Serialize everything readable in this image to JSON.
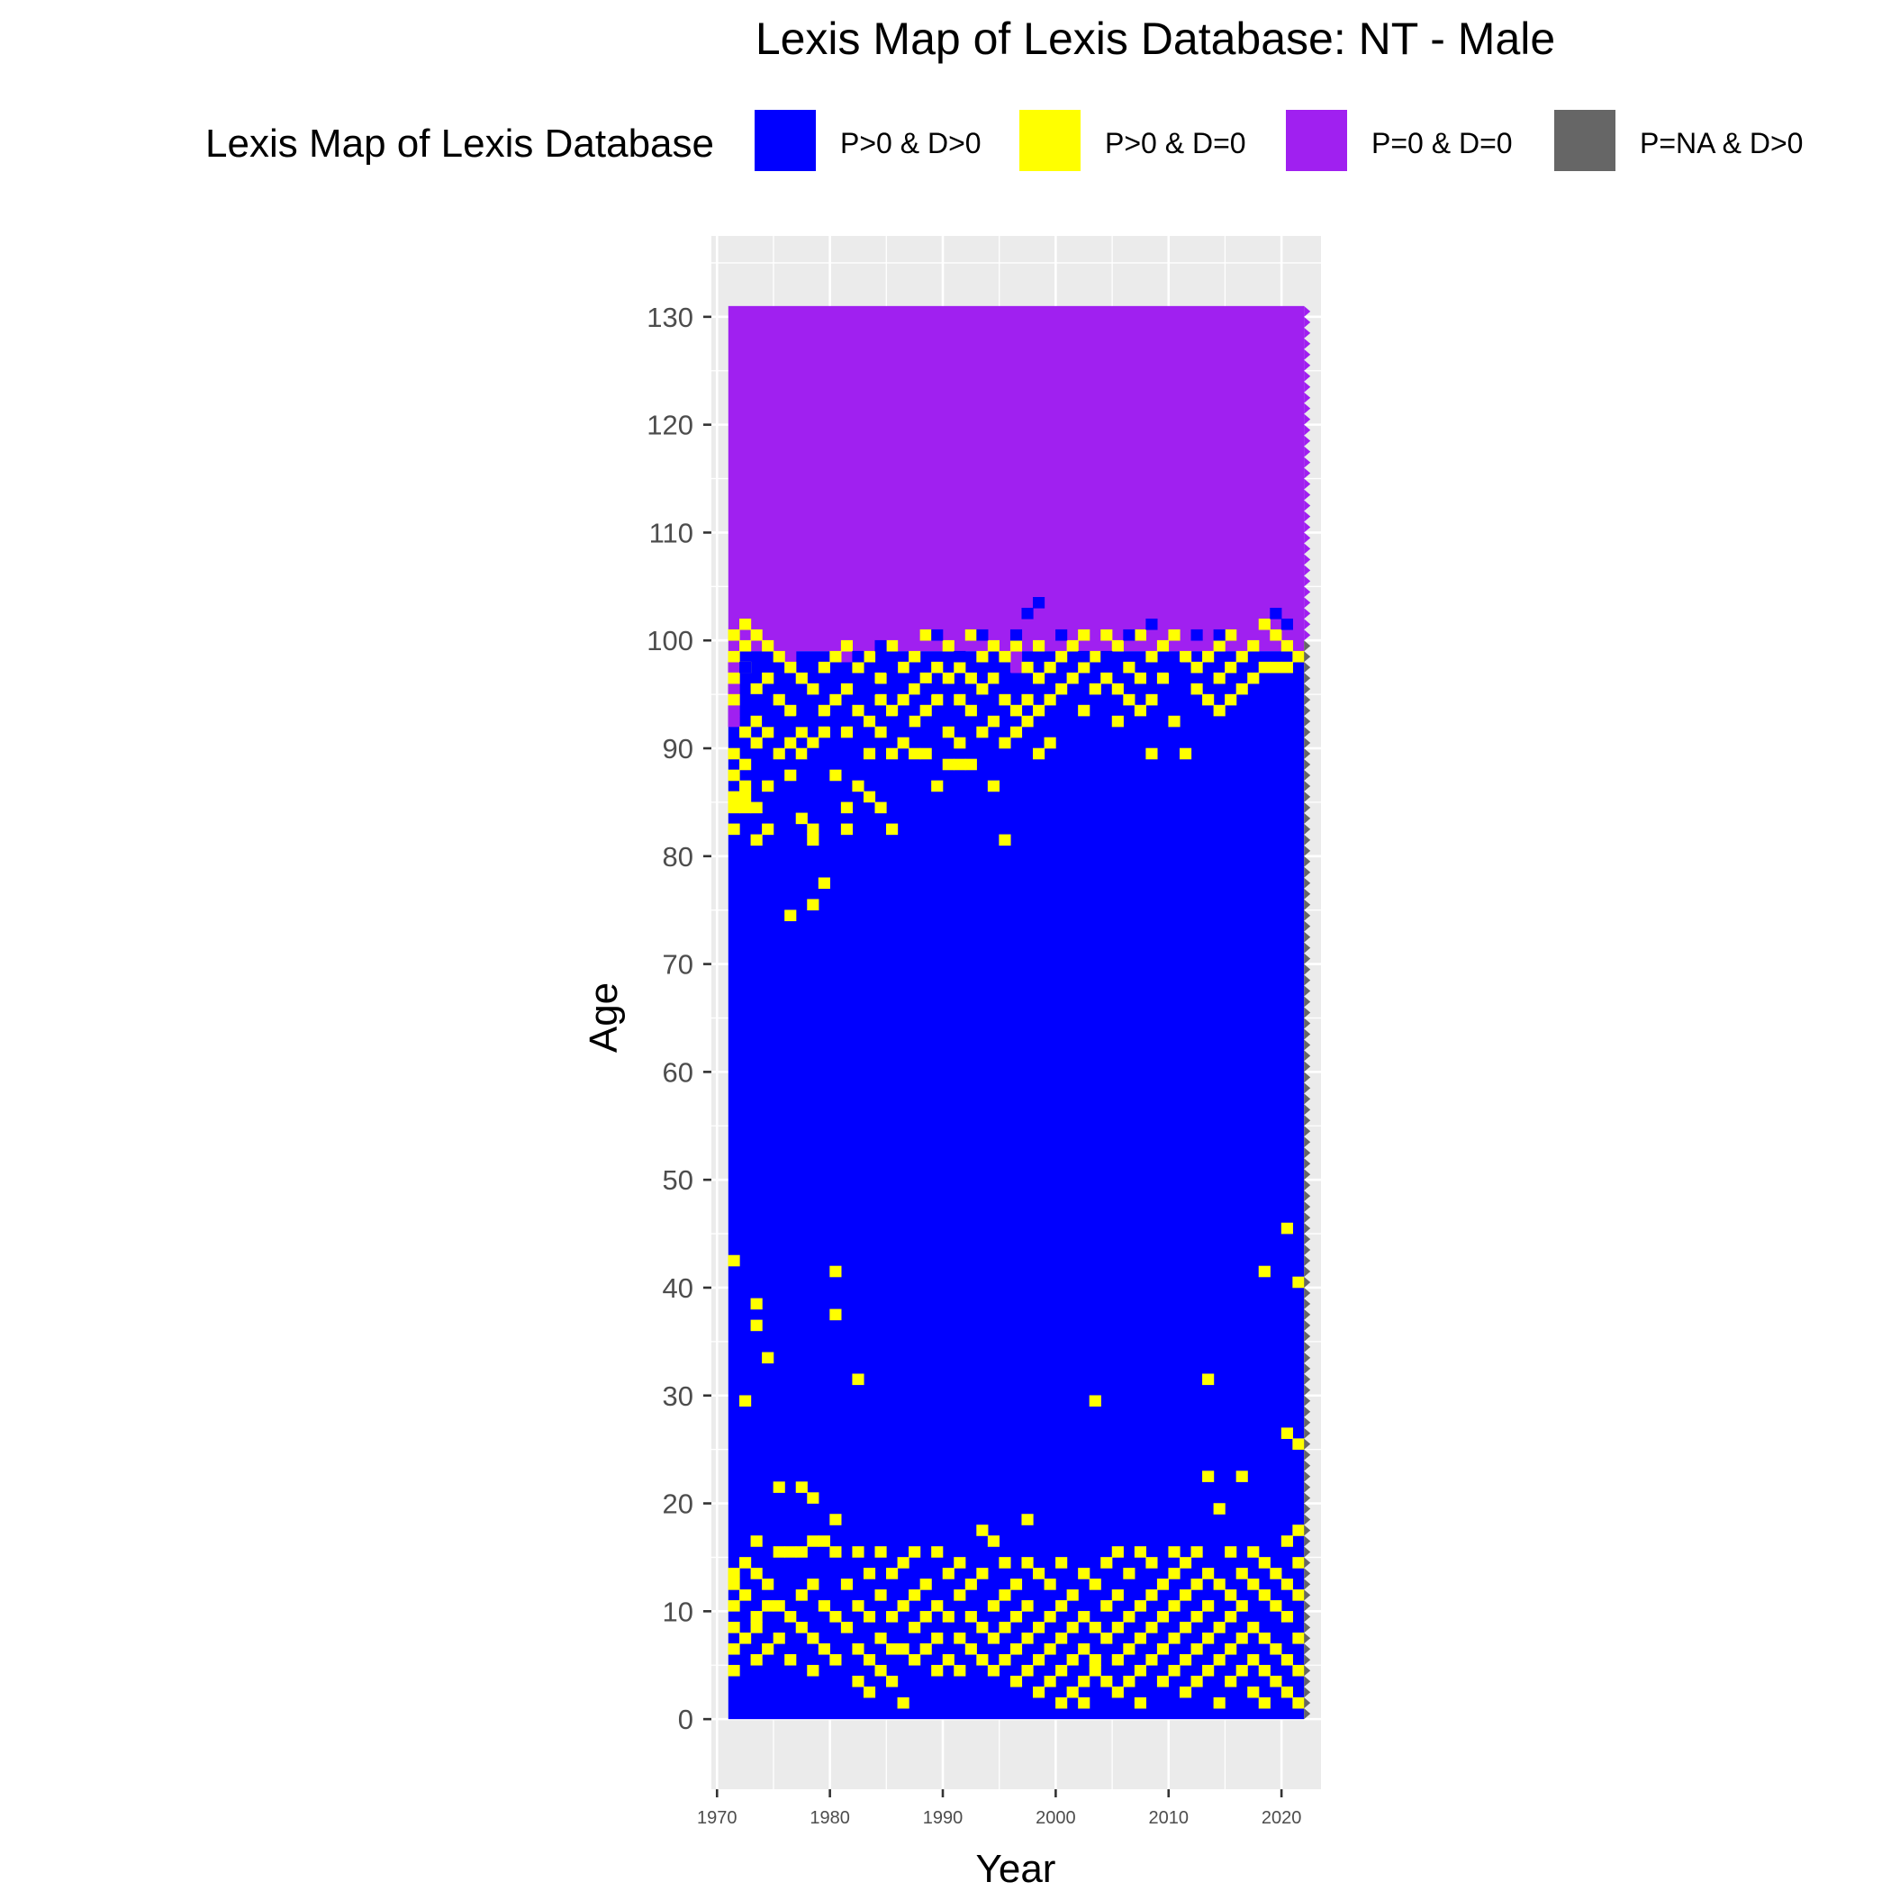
{
  "chart_data": {
    "type": "heatmap",
    "title": "Lexis Map of Lexis Database: NT - Male",
    "xlabel": "Year",
    "ylabel": "Age",
    "xlim": [
      1969.5,
      2023.5
    ],
    "ylim": [
      -6.5,
      137.5
    ],
    "x_ticks": [
      1970,
      1980,
      1990,
      2000,
      2010,
      2020
    ],
    "y_ticks": [
      0,
      10,
      20,
      30,
      40,
      50,
      60,
      70,
      80,
      90,
      100,
      110,
      120,
      130
    ],
    "grid": true,
    "legend": {
      "title": "Lexis Map of Lexis Database",
      "position": "top",
      "entries": [
        {
          "label": "P>0 & D>0",
          "color": "#0000ff"
        },
        {
          "label": "P>0 & D=0",
          "color": "#ffff00"
        },
        {
          "label": "P=0 & D=0",
          "color": "#a020f0"
        },
        {
          "label": "P=NA & D>0",
          "color": "#666666"
        }
      ]
    },
    "year_range": [
      1971,
      2021
    ],
    "age_range": [
      0,
      130
    ],
    "regions": [
      {
        "category": "P=0 & D=0",
        "age_from": 99,
        "age_to": 131,
        "note": "upper ages"
      },
      {
        "category": "P>0 & D>0",
        "age_from": 0,
        "age_to": 99
      }
    ],
    "yellow_cells": [
      [
        1971,
        100
      ],
      [
        1971,
        98
      ],
      [
        1971,
        96
      ],
      [
        1971,
        94
      ],
      [
        1971,
        89
      ],
      [
        1971,
        87
      ],
      [
        1971,
        85
      ],
      [
        1971,
        84
      ],
      [
        1971,
        82
      ],
      [
        1971,
        42
      ],
      [
        1971,
        13
      ],
      [
        1971,
        12
      ],
      [
        1971,
        10
      ],
      [
        1971,
        8
      ],
      [
        1971,
        6
      ],
      [
        1971,
        4
      ],
      [
        1972,
        101
      ],
      [
        1972,
        99
      ],
      [
        1972,
        97
      ],
      [
        1972,
        91
      ],
      [
        1972,
        88
      ],
      [
        1972,
        86
      ],
      [
        1972,
        85
      ],
      [
        1972,
        84
      ],
      [
        1972,
        29
      ],
      [
        1972,
        14
      ],
      [
        1972,
        11
      ],
      [
        1972,
        7
      ],
      [
        1973,
        100
      ],
      [
        1973,
        95
      ],
      [
        1973,
        92
      ],
      [
        1973,
        90
      ],
      [
        1973,
        84
      ],
      [
        1973,
        81
      ],
      [
        1973,
        38
      ],
      [
        1973,
        36
      ],
      [
        1973,
        16
      ],
      [
        1973,
        13
      ],
      [
        1973,
        9
      ],
      [
        1973,
        8
      ],
      [
        1973,
        5
      ],
      [
        1974,
        99
      ],
      [
        1974,
        96
      ],
      [
        1974,
        91
      ],
      [
        1974,
        86
      ],
      [
        1974,
        82
      ],
      [
        1974,
        33
      ],
      [
        1974,
        12
      ],
      [
        1974,
        10
      ],
      [
        1974,
        6
      ],
      [
        1975,
        98
      ],
      [
        1975,
        94
      ],
      [
        1975,
        89
      ],
      [
        1975,
        21
      ],
      [
        1975,
        15
      ],
      [
        1975,
        10
      ],
      [
        1975,
        7
      ],
      [
        1976,
        97
      ],
      [
        1976,
        93
      ],
      [
        1976,
        90
      ],
      [
        1976,
        87
      ],
      [
        1976,
        74
      ],
      [
        1976,
        15
      ],
      [
        1976,
        9
      ],
      [
        1976,
        5
      ],
      [
        1977,
        96
      ],
      [
        1977,
        91
      ],
      [
        1977,
        89
      ],
      [
        1977,
        83
      ],
      [
        1977,
        21
      ],
      [
        1977,
        15
      ],
      [
        1977,
        11
      ],
      [
        1977,
        8
      ],
      [
        1978,
        95
      ],
      [
        1978,
        90
      ],
      [
        1978,
        82
      ],
      [
        1978,
        81
      ],
      [
        1978,
        75
      ],
      [
        1978,
        20
      ],
      [
        1978,
        16
      ],
      [
        1978,
        12
      ],
      [
        1978,
        7
      ],
      [
        1978,
        4
      ],
      [
        1979,
        97
      ],
      [
        1979,
        93
      ],
      [
        1979,
        91
      ],
      [
        1979,
        77
      ],
      [
        1979,
        16
      ],
      [
        1979,
        10
      ],
      [
        1979,
        6
      ],
      [
        1980,
        98
      ],
      [
        1980,
        94
      ],
      [
        1980,
        87
      ],
      [
        1980,
        41
      ],
      [
        1980,
        37
      ],
      [
        1980,
        18
      ],
      [
        1980,
        15
      ],
      [
        1980,
        9
      ],
      [
        1980,
        5
      ],
      [
        1981,
        99
      ],
      [
        1981,
        95
      ],
      [
        1981,
        91
      ],
      [
        1981,
        84
      ],
      [
        1981,
        82
      ],
      [
        1981,
        12
      ],
      [
        1981,
        8
      ],
      [
        1982,
        97
      ],
      [
        1982,
        93
      ],
      [
        1982,
        86
      ],
      [
        1982,
        31
      ],
      [
        1982,
        15
      ],
      [
        1982,
        10
      ],
      [
        1982,
        6
      ],
      [
        1982,
        3
      ],
      [
        1983,
        98
      ],
      [
        1983,
        92
      ],
      [
        1983,
        89
      ],
      [
        1983,
        85
      ],
      [
        1983,
        13
      ],
      [
        1983,
        9
      ],
      [
        1983,
        5
      ],
      [
        1983,
        2
      ],
      [
        1984,
        96
      ],
      [
        1984,
        94
      ],
      [
        1984,
        91
      ],
      [
        1984,
        84
      ],
      [
        1984,
        15
      ],
      [
        1984,
        11
      ],
      [
        1984,
        7
      ],
      [
        1984,
        4
      ],
      [
        1985,
        99
      ],
      [
        1985,
        93
      ],
      [
        1985,
        89
      ],
      [
        1985,
        82
      ],
      [
        1985,
        13
      ],
      [
        1985,
        9
      ],
      [
        1985,
        6
      ],
      [
        1985,
        3
      ],
      [
        1986,
        97
      ],
      [
        1986,
        94
      ],
      [
        1986,
        90
      ],
      [
        1986,
        14
      ],
      [
        1986,
        10
      ],
      [
        1986,
        6
      ],
      [
        1986,
        1
      ],
      [
        1987,
        98
      ],
      [
        1987,
        95
      ],
      [
        1987,
        92
      ],
      [
        1987,
        89
      ],
      [
        1987,
        15
      ],
      [
        1987,
        11
      ],
      [
        1987,
        8
      ],
      [
        1987,
        5
      ],
      [
        1988,
        100
      ],
      [
        1988,
        96
      ],
      [
        1988,
        93
      ],
      [
        1988,
        89
      ],
      [
        1988,
        12
      ],
      [
        1988,
        9
      ],
      [
        1988,
        6
      ],
      [
        1989,
        97
      ],
      [
        1989,
        94
      ],
      [
        1989,
        86
      ],
      [
        1989,
        15
      ],
      [
        1989,
        10
      ],
      [
        1989,
        7
      ],
      [
        1989,
        4
      ],
      [
        1990,
        99
      ],
      [
        1990,
        96
      ],
      [
        1990,
        91
      ],
      [
        1990,
        88
      ],
      [
        1990,
        13
      ],
      [
        1990,
        9
      ],
      [
        1990,
        5
      ],
      [
        1991,
        97
      ],
      [
        1991,
        94
      ],
      [
        1991,
        90
      ],
      [
        1991,
        88
      ],
      [
        1991,
        14
      ],
      [
        1991,
        11
      ],
      [
        1991,
        7
      ],
      [
        1991,
        4
      ],
      [
        1992,
        100
      ],
      [
        1992,
        96
      ],
      [
        1992,
        93
      ],
      [
        1992,
        88
      ],
      [
        1992,
        12
      ],
      [
        1992,
        9
      ],
      [
        1992,
        6
      ],
      [
        1993,
        98
      ],
      [
        1993,
        95
      ],
      [
        1993,
        91
      ],
      [
        1993,
        17
      ],
      [
        1993,
        13
      ],
      [
        1993,
        8
      ],
      [
        1993,
        5
      ],
      [
        1994,
        99
      ],
      [
        1994,
        96
      ],
      [
        1994,
        92
      ],
      [
        1994,
        86
      ],
      [
        1994,
        16
      ],
      [
        1994,
        10
      ],
      [
        1994,
        7
      ],
      [
        1994,
        4
      ],
      [
        1995,
        98
      ],
      [
        1995,
        94
      ],
      [
        1995,
        90
      ],
      [
        1995,
        81
      ],
      [
        1995,
        14
      ],
      [
        1995,
        11
      ],
      [
        1995,
        8
      ],
      [
        1995,
        5
      ],
      [
        1996,
        99
      ],
      [
        1996,
        93
      ],
      [
        1996,
        91
      ],
      [
        1996,
        12
      ],
      [
        1996,
        9
      ],
      [
        1996,
        6
      ],
      [
        1996,
        3
      ],
      [
        1997,
        97
      ],
      [
        1997,
        94
      ],
      [
        1997,
        92
      ],
      [
        1997,
        18
      ],
      [
        1997,
        14
      ],
      [
        1997,
        10
      ],
      [
        1997,
        7
      ],
      [
        1997,
        4
      ],
      [
        1998,
        99
      ],
      [
        1998,
        96
      ],
      [
        1998,
        93
      ],
      [
        1998,
        89
      ],
      [
        1998,
        13
      ],
      [
        1998,
        8
      ],
      [
        1998,
        5
      ],
      [
        1998,
        2
      ],
      [
        1999,
        97
      ],
      [
        1999,
        94
      ],
      [
        1999,
        90
      ],
      [
        1999,
        12
      ],
      [
        1999,
        9
      ],
      [
        1999,
        6
      ],
      [
        1999,
        3
      ],
      [
        2000,
        98
      ],
      [
        2000,
        95
      ],
      [
        2000,
        14
      ],
      [
        2000,
        10
      ],
      [
        2000,
        7
      ],
      [
        2000,
        4
      ],
      [
        2000,
        1
      ],
      [
        2001,
        99
      ],
      [
        2001,
        96
      ],
      [
        2001,
        11
      ],
      [
        2001,
        8
      ],
      [
        2001,
        5
      ],
      [
        2001,
        2
      ],
      [
        2002,
        100
      ],
      [
        2002,
        97
      ],
      [
        2002,
        93
      ],
      [
        2002,
        13
      ],
      [
        2002,
        9
      ],
      [
        2002,
        6
      ],
      [
        2002,
        3
      ],
      [
        2002,
        1
      ],
      [
        2003,
        98
      ],
      [
        2003,
        95
      ],
      [
        2003,
        29
      ],
      [
        2003,
        12
      ],
      [
        2003,
        8
      ],
      [
        2003,
        5
      ],
      [
        2003,
        4
      ],
      [
        2004,
        100
      ],
      [
        2004,
        96
      ],
      [
        2004,
        14
      ],
      [
        2004,
        10
      ],
      [
        2004,
        7
      ],
      [
        2004,
        3
      ],
      [
        2005,
        99
      ],
      [
        2005,
        95
      ],
      [
        2005,
        92
      ],
      [
        2005,
        15
      ],
      [
        2005,
        11
      ],
      [
        2005,
        8
      ],
      [
        2005,
        5
      ],
      [
        2005,
        2
      ],
      [
        2006,
        97
      ],
      [
        2006,
        94
      ],
      [
        2006,
        13
      ],
      [
        2006,
        9
      ],
      [
        2006,
        6
      ],
      [
        2006,
        3
      ],
      [
        2007,
        100
      ],
      [
        2007,
        96
      ],
      [
        2007,
        93
      ],
      [
        2007,
        15
      ],
      [
        2007,
        10
      ],
      [
        2007,
        7
      ],
      [
        2007,
        4
      ],
      [
        2007,
        1
      ],
      [
        2008,
        98
      ],
      [
        2008,
        94
      ],
      [
        2008,
        89
      ],
      [
        2008,
        14
      ],
      [
        2008,
        11
      ],
      [
        2008,
        8
      ],
      [
        2008,
        5
      ],
      [
        2009,
        99
      ],
      [
        2009,
        96
      ],
      [
        2009,
        12
      ],
      [
        2009,
        9
      ],
      [
        2009,
        6
      ],
      [
        2009,
        3
      ],
      [
        2010,
        100
      ],
      [
        2010,
        92
      ],
      [
        2010,
        15
      ],
      [
        2010,
        13
      ],
      [
        2010,
        10
      ],
      [
        2010,
        7
      ],
      [
        2010,
        4
      ],
      [
        2011,
        98
      ],
      [
        2011,
        89
      ],
      [
        2011,
        14
      ],
      [
        2011,
        11
      ],
      [
        2011,
        8
      ],
      [
        2011,
        5
      ],
      [
        2011,
        2
      ],
      [
        2012,
        97
      ],
      [
        2012,
        95
      ],
      [
        2012,
        15
      ],
      [
        2012,
        12
      ],
      [
        2012,
        9
      ],
      [
        2012,
        6
      ],
      [
        2012,
        3
      ],
      [
        2013,
        98
      ],
      [
        2013,
        94
      ],
      [
        2013,
        31
      ],
      [
        2013,
        22
      ],
      [
        2013,
        13
      ],
      [
        2013,
        10
      ],
      [
        2013,
        7
      ],
      [
        2013,
        4
      ],
      [
        2014,
        99
      ],
      [
        2014,
        96
      ],
      [
        2014,
        93
      ],
      [
        2014,
        19
      ],
      [
        2014,
        12
      ],
      [
        2014,
        8
      ],
      [
        2014,
        5
      ],
      [
        2014,
        1
      ],
      [
        2015,
        100
      ],
      [
        2015,
        97
      ],
      [
        2015,
        94
      ],
      [
        2015,
        15
      ],
      [
        2015,
        11
      ],
      [
        2015,
        9
      ],
      [
        2015,
        6
      ],
      [
        2015,
        3
      ],
      [
        2016,
        98
      ],
      [
        2016,
        95
      ],
      [
        2016,
        22
      ],
      [
        2016,
        13
      ],
      [
        2016,
        10
      ],
      [
        2016,
        7
      ],
      [
        2016,
        4
      ],
      [
        2017,
        99
      ],
      [
        2017,
        96
      ],
      [
        2017,
        15
      ],
      [
        2017,
        12
      ],
      [
        2017,
        8
      ],
      [
        2017,
        5
      ],
      [
        2017,
        2
      ],
      [
        2018,
        101
      ],
      [
        2018,
        97
      ],
      [
        2018,
        41
      ],
      [
        2018,
        14
      ],
      [
        2018,
        11
      ],
      [
        2018,
        7
      ],
      [
        2018,
        4
      ],
      [
        2018,
        1
      ],
      [
        2019,
        100
      ],
      [
        2019,
        97
      ],
      [
        2019,
        13
      ],
      [
        2019,
        10
      ],
      [
        2019,
        6
      ],
      [
        2019,
        3
      ],
      [
        2020,
        99
      ],
      [
        2020,
        97
      ],
      [
        2020,
        45
      ],
      [
        2020,
        26
      ],
      [
        2020,
        16
      ],
      [
        2020,
        12
      ],
      [
        2020,
        9
      ],
      [
        2020,
        5
      ],
      [
        2020,
        2
      ],
      [
        2021,
        98
      ],
      [
        2021,
        40
      ],
      [
        2021,
        25
      ],
      [
        2021,
        17
      ],
      [
        2021,
        14
      ],
      [
        2021,
        11
      ],
      [
        2021,
        7
      ],
      [
        2021,
        4
      ],
      [
        2021,
        1
      ]
    ],
    "blue_in_top": [
      [
        1972,
        97
      ],
      [
        1973,
        94
      ],
      [
        1974,
        92
      ],
      [
        1977,
        92
      ],
      [
        1978,
        89
      ],
      [
        1980,
        92
      ],
      [
        1982,
        98
      ],
      [
        1983,
        95
      ],
      [
        1984,
        99
      ],
      [
        1985,
        97
      ],
      [
        1986,
        92
      ],
      [
        1988,
        95
      ],
      [
        1989,
        100
      ],
      [
        1991,
        98
      ],
      [
        1993,
        100
      ],
      [
        1995,
        96
      ],
      [
        1996,
        100
      ],
      [
        1997,
        102
      ],
      [
        1998,
        103
      ],
      [
        2000,
        100
      ],
      [
        2002,
        98
      ],
      [
        2004,
        98
      ],
      [
        2006,
        100
      ],
      [
        2008,
        101
      ],
      [
        2010,
        97
      ],
      [
        2012,
        100
      ],
      [
        2014,
        100
      ],
      [
        2019,
        102
      ],
      [
        2020,
        101
      ]
    ],
    "purple_wedge": [
      [
        1971,
        92
      ],
      [
        1976,
        97
      ],
      [
        1981,
        98
      ],
      [
        1986,
        99
      ],
      [
        1996,
        97
      ],
      [
        1999,
        99
      ],
      [
        2011,
        98
      ],
      [
        2018,
        103
      ]
    ]
  }
}
